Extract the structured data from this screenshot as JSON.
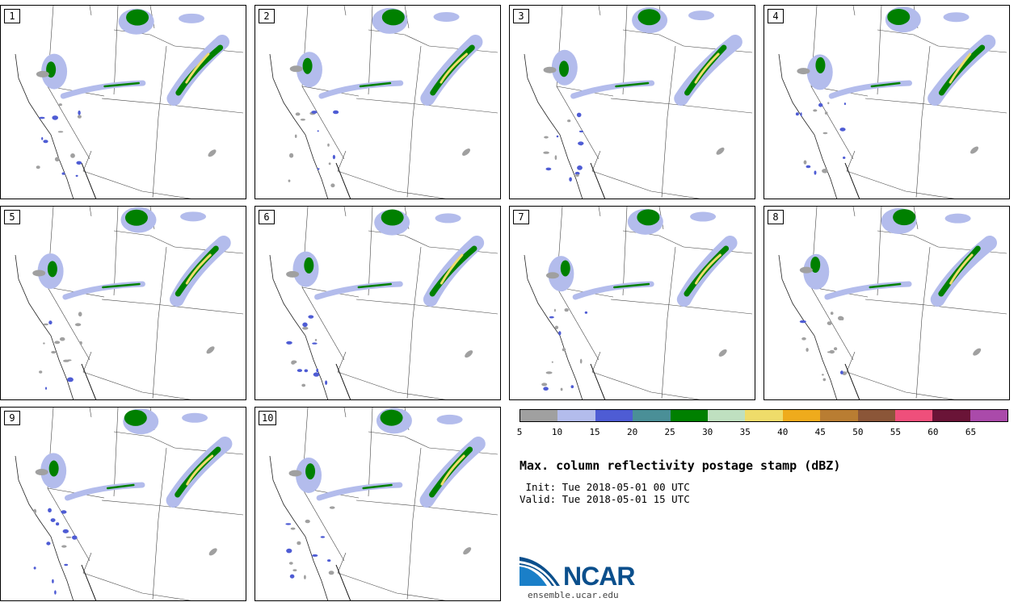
{
  "panels": [
    {
      "label": "1"
    },
    {
      "label": "2"
    },
    {
      "label": "3"
    },
    {
      "label": "4"
    },
    {
      "label": "5"
    },
    {
      "label": "6"
    },
    {
      "label": "7"
    },
    {
      "label": "8"
    },
    {
      "label": "9"
    },
    {
      "label": "10"
    }
  ],
  "colorbar": {
    "colors": [
      "#a0a0a0",
      "#b3bcec",
      "#4e5cd4",
      "#4a8f97",
      "#008000",
      "#bfe0c0",
      "#efdc6a",
      "#efab1c",
      "#b97d32",
      "#8b5638",
      "#ef4f7b",
      "#6a1437",
      "#aa4aaa"
    ],
    "ticks": [
      "5",
      "10",
      "15",
      "20",
      "25",
      "30",
      "35",
      "40",
      "45",
      "50",
      "55",
      "60",
      "65"
    ]
  },
  "info": {
    "title": "Max. column reflectivity postage stamp (dBZ)",
    "init": " Init: Tue 2018-05-01 00 UTC",
    "valid": "Valid: Tue 2018-05-01 15 UTC"
  },
  "footer": {
    "logo_text": "NCAR",
    "website": "ensemble.ucar.edu"
  }
}
